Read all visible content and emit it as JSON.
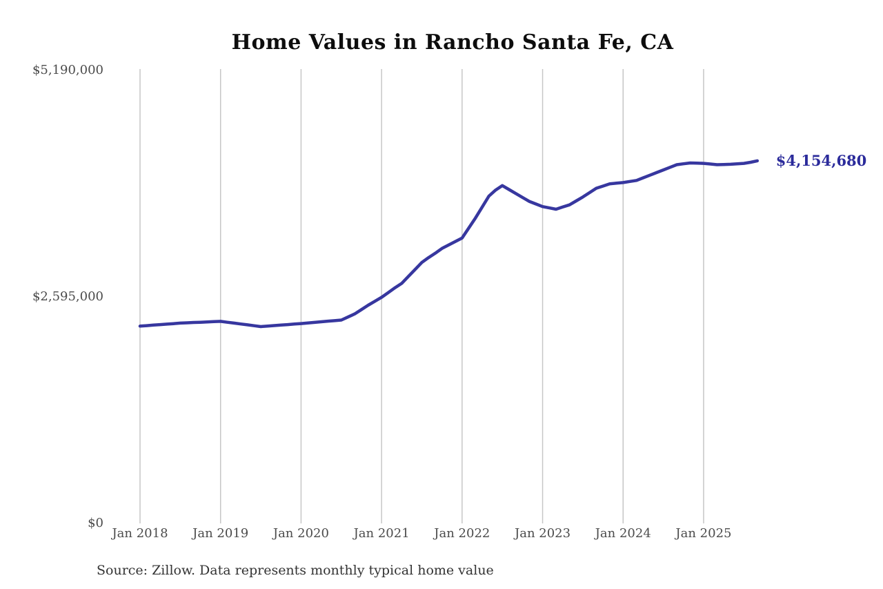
{
  "chart": {
    "title": "Home Values in Rancho Santa Fe, CA",
    "source": "Source: Zillow. Data represents monthly typical home value",
    "annotation": {
      "label": "$4,154,680"
    },
    "colors": {
      "line": "#37379f",
      "annotation": "#2b2b9b",
      "gridline": "#c6c6c6",
      "tick_text": "#4b4b4b",
      "title_text": "#0d0d0d",
      "source_text": "#333333"
    }
  },
  "chart_data": {
    "type": "line",
    "title": "Home Values in Rancho Santa Fe, CA",
    "xlabel": "",
    "ylabel": "",
    "ylim": [
      0,
      5190000
    ],
    "grid": "vertical-only",
    "legend": "none",
    "series_name": "Monthly typical home value",
    "y_ticks": [
      {
        "value": 0,
        "label": "$0"
      },
      {
        "value": 2595000,
        "label": "$2,595,000"
      },
      {
        "value": 5190000,
        "label": "$5,190,000"
      }
    ],
    "x_ticks": [
      "Jan 2018",
      "Jan 2019",
      "Jan 2020",
      "Jan 2021",
      "Jan 2022",
      "Jan 2023",
      "Jan 2024",
      "Jan 2025"
    ],
    "x": [
      "2018-01",
      "2018-02",
      "2018-03",
      "2018-04",
      "2018-05",
      "2018-06",
      "2018-07",
      "2018-08",
      "2018-09",
      "2018-10",
      "2018-11",
      "2018-12",
      "2019-01",
      "2019-02",
      "2019-03",
      "2019-04",
      "2019-05",
      "2019-06",
      "2019-07",
      "2019-08",
      "2019-09",
      "2019-10",
      "2019-11",
      "2019-12",
      "2020-01",
      "2020-02",
      "2020-03",
      "2020-04",
      "2020-05",
      "2020-06",
      "2020-07",
      "2020-08",
      "2020-09",
      "2020-10",
      "2020-11",
      "2020-12",
      "2021-01",
      "2021-02",
      "2021-03",
      "2021-04",
      "2021-05",
      "2021-06",
      "2021-07",
      "2021-08",
      "2021-09",
      "2021-10",
      "2021-11",
      "2021-12",
      "2022-01",
      "2022-02",
      "2022-03",
      "2022-04",
      "2022-05",
      "2022-06",
      "2022-07",
      "2022-08",
      "2022-09",
      "2022-10",
      "2022-11",
      "2022-12",
      "2023-01",
      "2023-02",
      "2023-03",
      "2023-04",
      "2023-05",
      "2023-06",
      "2023-07",
      "2023-08",
      "2023-09",
      "2023-10",
      "2023-11",
      "2023-12",
      "2024-01",
      "2024-02",
      "2024-03",
      "2024-04",
      "2024-05",
      "2024-06",
      "2024-07",
      "2024-08",
      "2024-09",
      "2024-10",
      "2024-11",
      "2024-12",
      "2025-01",
      "2025-02",
      "2025-03",
      "2025-04",
      "2025-05",
      "2025-06",
      "2025-07",
      "2025-08",
      "2025-09"
    ],
    "values": [
      2260000,
      2266000,
      2272000,
      2278000,
      2283000,
      2289000,
      2295000,
      2298000,
      2302000,
      2305000,
      2308000,
      2312000,
      2315000,
      2305000,
      2295000,
      2285000,
      2275000,
      2265000,
      2255000,
      2261000,
      2267000,
      2272000,
      2278000,
      2284000,
      2290000,
      2297000,
      2303000,
      2310000,
      2317000,
      2323000,
      2330000,
      2365000,
      2400000,
      2450000,
      2500000,
      2545000,
      2590000,
      2645000,
      2700000,
      2750000,
      2830000,
      2910000,
      2990000,
      3045000,
      3095000,
      3150000,
      3190000,
      3230000,
      3270000,
      3385000,
      3500000,
      3625000,
      3750000,
      3820000,
      3870000,
      3825000,
      3780000,
      3735000,
      3690000,
      3660000,
      3630000,
      3615000,
      3600000,
      3625000,
      3650000,
      3695000,
      3740000,
      3790000,
      3840000,
      3865000,
      3890000,
      3898000,
      3905000,
      3918000,
      3930000,
      3960000,
      3990000,
      4020000,
      4050000,
      4080000,
      4110000,
      4120000,
      4130000,
      4128000,
      4125000,
      4118000,
      4110000,
      4112000,
      4115000,
      4120000,
      4125000,
      4138000,
      4154680
    ],
    "last_value_label": "$4,154,680"
  }
}
